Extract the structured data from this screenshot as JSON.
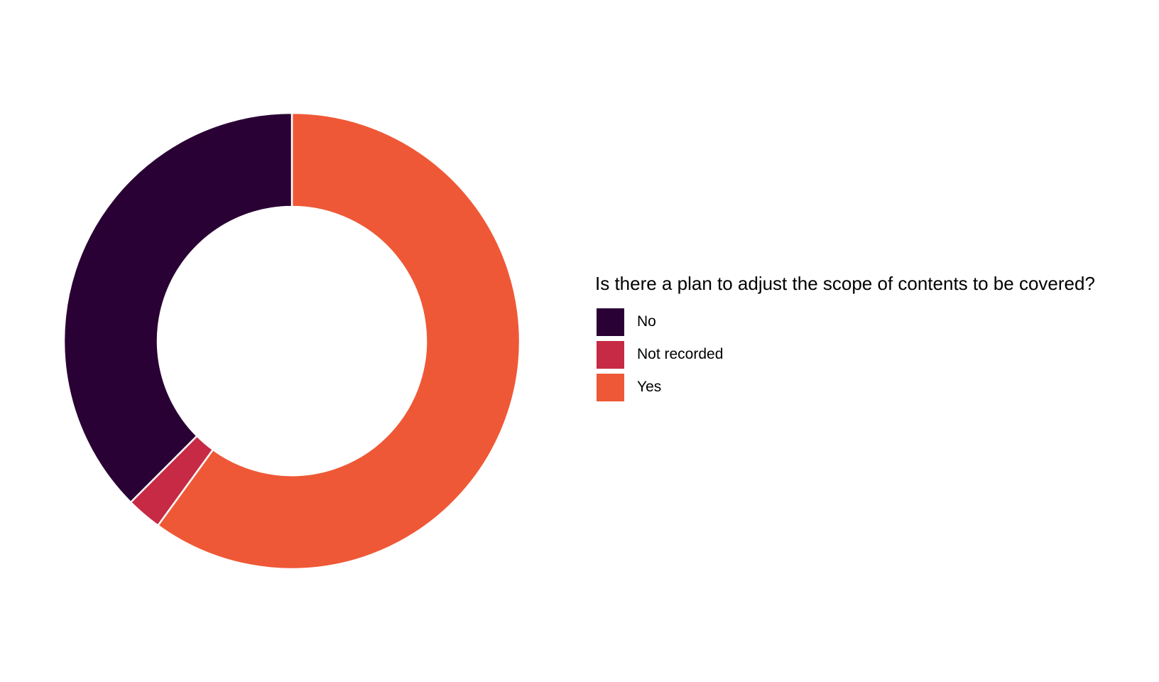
{
  "chart_data": {
    "type": "pie",
    "style": "donut",
    "legend_title": "Is there a plan to adjust the scope of contents to be covered?",
    "legend_position": "right",
    "categories": [
      "No",
      "Not recorded",
      "Yes"
    ],
    "values": [
      37.5,
      2.5,
      60.0
    ],
    "colors": [
      "#2a0134",
      "#c62a45",
      "#ef5836"
    ],
    "slice_order": [
      "Yes",
      "Not recorded",
      "No"
    ],
    "start_angle": "12 o'clock",
    "direction": "clockwise"
  }
}
